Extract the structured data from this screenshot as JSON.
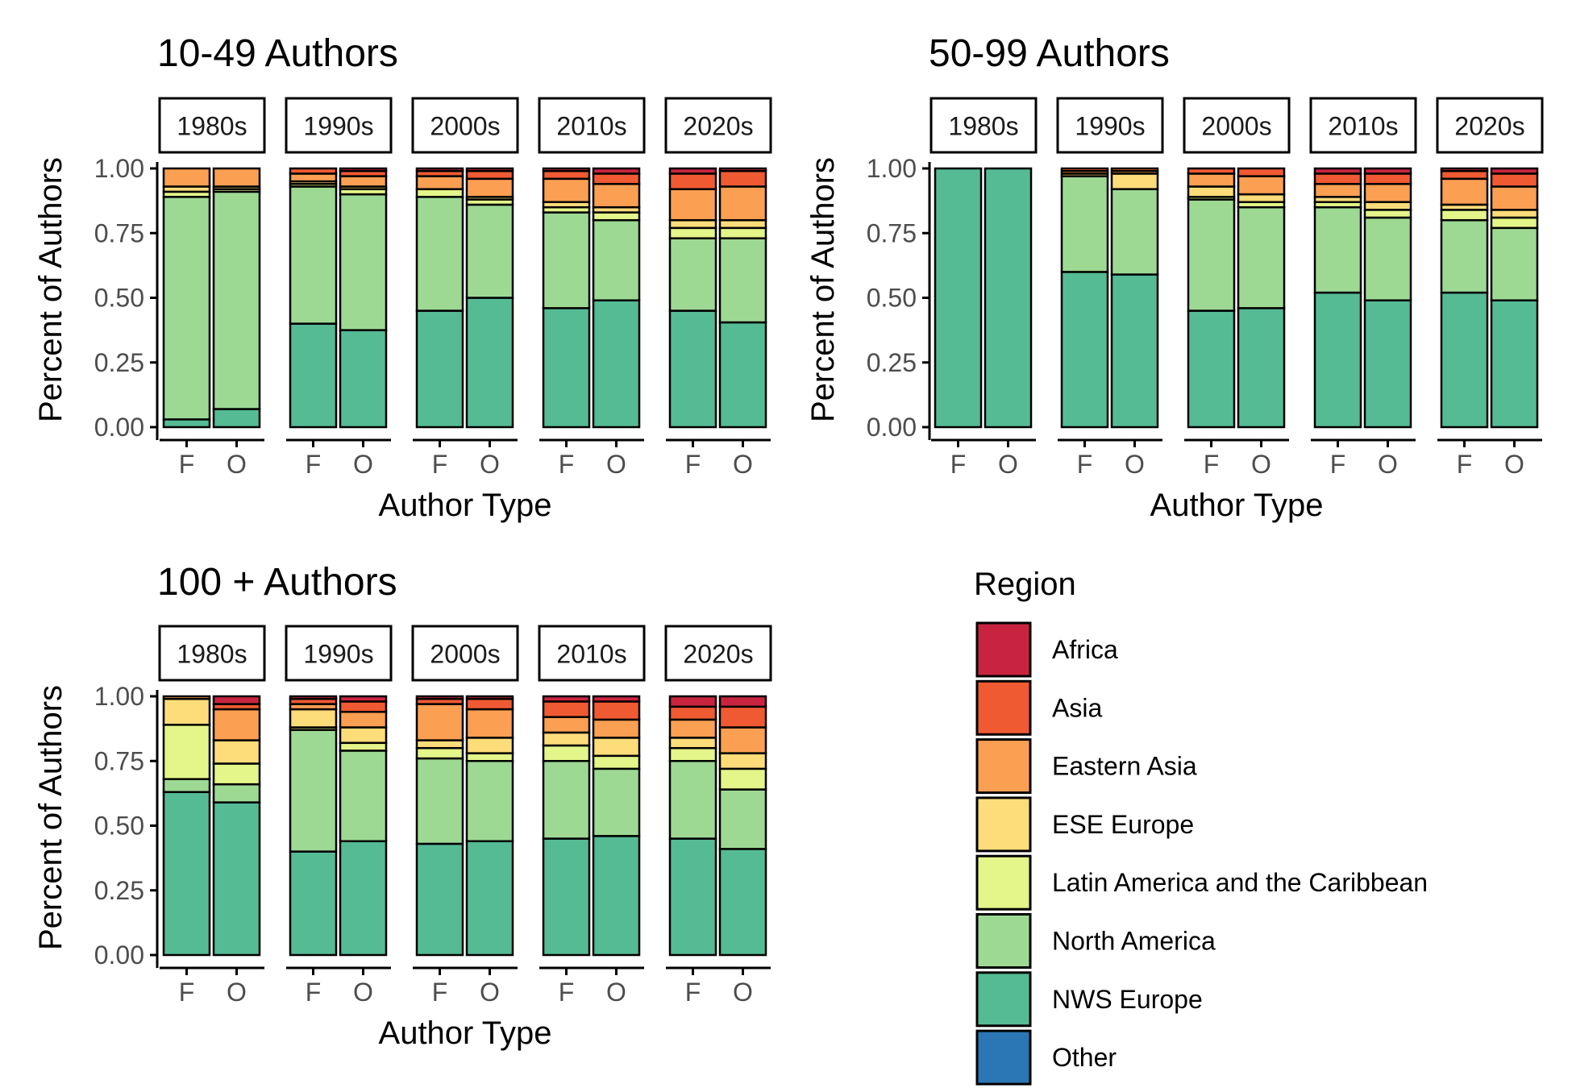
{
  "chart_data": {
    "type": "bar",
    "stacked": true,
    "y_ticks": [
      "0.00",
      "0.25",
      "0.50",
      "0.75",
      "1.00"
    ],
    "ylim": [
      0,
      1
    ],
    "ylabel": "Percent of Authors",
    "xlabel": "Author Type",
    "categories": [
      "F",
      "O"
    ],
    "decades": [
      "1980s",
      "1990s",
      "2000s",
      "2010s",
      "2020s"
    ],
    "legend": {
      "title": "Region",
      "position": "bottom-right",
      "items": [
        {
          "name": "Africa",
          "color": "#C9243F"
        },
        {
          "name": "Asia",
          "color": "#F05A32"
        },
        {
          "name": "Eastern Asia",
          "color": "#FB9F52"
        },
        {
          "name": "ESE Europe",
          "color": "#FDDC7A"
        },
        {
          "name": "Latin America and the Caribbean",
          "color": "#E4F589"
        },
        {
          "name": "North America",
          "color": "#9DD993"
        },
        {
          "name": "NWS Europe",
          "color": "#55BB94"
        },
        {
          "name": "Other",
          "color": "#2B76B4"
        }
      ]
    },
    "stack_order_bottom_to_top": [
      "NWS Europe",
      "North America",
      "Latin America and the Caribbean",
      "ESE Europe",
      "Eastern Asia",
      "Asia",
      "Africa",
      "Other"
    ],
    "panels": [
      {
        "title": "10-49 Authors",
        "facets": [
          {
            "decade": "1980s",
            "bars": [
              {
                "category": "F",
                "values": [
                  0.03,
                  0.86,
                  0.02,
                  0.02,
                  0.07,
                  0.0,
                  0.0,
                  0.0
                ]
              },
              {
                "category": "O",
                "values": [
                  0.07,
                  0.84,
                  0.01,
                  0.01,
                  0.07,
                  0.0,
                  0.0,
                  0.0
                ]
              }
            ]
          },
          {
            "decade": "1990s",
            "bars": [
              {
                "category": "F",
                "values": [
                  0.4,
                  0.53,
                  0.01,
                  0.01,
                  0.03,
                  0.02,
                  0.0,
                  0.0
                ]
              },
              {
                "category": "O",
                "values": [
                  0.375,
                  0.525,
                  0.02,
                  0.01,
                  0.04,
                  0.02,
                  0.01,
                  0.0
                ]
              }
            ]
          },
          {
            "decade": "2000s",
            "bars": [
              {
                "category": "F",
                "values": [
                  0.45,
                  0.44,
                  0.03,
                  0.0,
                  0.05,
                  0.02,
                  0.01,
                  0.0
                ]
              },
              {
                "category": "O",
                "values": [
                  0.5,
                  0.36,
                  0.02,
                  0.01,
                  0.07,
                  0.03,
                  0.01,
                  0.0
                ]
              }
            ]
          },
          {
            "decade": "2010s",
            "bars": [
              {
                "category": "F",
                "values": [
                  0.46,
                  0.37,
                  0.02,
                  0.02,
                  0.09,
                  0.03,
                  0.01,
                  0.0
                ]
              },
              {
                "category": "O",
                "values": [
                  0.49,
                  0.31,
                  0.03,
                  0.02,
                  0.09,
                  0.04,
                  0.02,
                  0.0
                ]
              }
            ]
          },
          {
            "decade": "2020s",
            "bars": [
              {
                "category": "F",
                "values": [
                  0.45,
                  0.28,
                  0.04,
                  0.03,
                  0.12,
                  0.06,
                  0.02,
                  0.0
                ]
              },
              {
                "category": "O",
                "values": [
                  0.405,
                  0.325,
                  0.04,
                  0.03,
                  0.13,
                  0.06,
                  0.01,
                  0.0
                ]
              }
            ]
          }
        ]
      },
      {
        "title": "50-99 Authors",
        "facets": [
          {
            "decade": "1980s",
            "bars": [
              {
                "category": "F",
                "values": [
                  1.0,
                  0.0,
                  0.0,
                  0.0,
                  0.0,
                  0.0,
                  0.0,
                  0.0
                ]
              },
              {
                "category": "O",
                "values": [
                  1.0,
                  0.0,
                  0.0,
                  0.0,
                  0.0,
                  0.0,
                  0.0,
                  0.0
                ]
              }
            ]
          },
          {
            "decade": "1990s",
            "bars": [
              {
                "category": "F",
                "values": [
                  0.6,
                  0.37,
                  0.0,
                  0.01,
                  0.01,
                  0.01,
                  0.0,
                  0.0
                ]
              },
              {
                "category": "O",
                "values": [
                  0.59,
                  0.33,
                  0.0,
                  0.06,
                  0.01,
                  0.01,
                  0.0,
                  0.0
                ]
              }
            ]
          },
          {
            "decade": "2000s",
            "bars": [
              {
                "category": "F",
                "values": [
                  0.45,
                  0.43,
                  0.01,
                  0.04,
                  0.05,
                  0.02,
                  0.0,
                  0.0
                ]
              },
              {
                "category": "O",
                "values": [
                  0.46,
                  0.39,
                  0.02,
                  0.03,
                  0.07,
                  0.03,
                  0.0,
                  0.0
                ]
              }
            ]
          },
          {
            "decade": "2010s",
            "bars": [
              {
                "category": "F",
                "values": [
                  0.52,
                  0.33,
                  0.02,
                  0.02,
                  0.05,
                  0.04,
                  0.02,
                  0.0
                ]
              },
              {
                "category": "O",
                "values": [
                  0.49,
                  0.32,
                  0.03,
                  0.03,
                  0.07,
                  0.04,
                  0.02,
                  0.0
                ]
              }
            ]
          },
          {
            "decade": "2020s",
            "bars": [
              {
                "category": "F",
                "values": [
                  0.52,
                  0.28,
                  0.04,
                  0.02,
                  0.1,
                  0.03,
                  0.01,
                  0.0
                ]
              },
              {
                "category": "O",
                "values": [
                  0.49,
                  0.28,
                  0.04,
                  0.03,
                  0.09,
                  0.05,
                  0.02,
                  0.0
                ]
              }
            ]
          }
        ]
      },
      {
        "title": "100 + Authors",
        "facets": [
          {
            "decade": "1980s",
            "bars": [
              {
                "category": "F",
                "values": [
                  0.63,
                  0.05,
                  0.21,
                  0.1,
                  0.01,
                  0.0,
                  0.0,
                  0.0
                ]
              },
              {
                "category": "O",
                "values": [
                  0.59,
                  0.07,
                  0.08,
                  0.09,
                  0.12,
                  0.02,
                  0.03,
                  0.0
                ]
              }
            ]
          },
          {
            "decade": "1990s",
            "bars": [
              {
                "category": "F",
                "values": [
                  0.4,
                  0.47,
                  0.01,
                  0.07,
                  0.02,
                  0.02,
                  0.01,
                  0.0
                ]
              },
              {
                "category": "O",
                "values": [
                  0.44,
                  0.35,
                  0.03,
                  0.06,
                  0.06,
                  0.04,
                  0.02,
                  0.0
                ]
              }
            ]
          },
          {
            "decade": "2000s",
            "bars": [
              {
                "category": "F",
                "values": [
                  0.43,
                  0.33,
                  0.04,
                  0.03,
                  0.14,
                  0.02,
                  0.01,
                  0.0
                ]
              },
              {
                "category": "O",
                "values": [
                  0.44,
                  0.31,
                  0.03,
                  0.06,
                  0.11,
                  0.04,
                  0.01,
                  0.0
                ]
              }
            ]
          },
          {
            "decade": "2010s",
            "bars": [
              {
                "category": "F",
                "values": [
                  0.45,
                  0.3,
                  0.06,
                  0.05,
                  0.06,
                  0.06,
                  0.02,
                  0.0
                ]
              },
              {
                "category": "O",
                "values": [
                  0.46,
                  0.26,
                  0.05,
                  0.07,
                  0.07,
                  0.07,
                  0.02,
                  0.0
                ]
              }
            ]
          },
          {
            "decade": "2020s",
            "bars": [
              {
                "category": "F",
                "values": [
                  0.45,
                  0.3,
                  0.05,
                  0.04,
                  0.07,
                  0.05,
                  0.04,
                  0.0
                ]
              },
              {
                "category": "O",
                "values": [
                  0.41,
                  0.23,
                  0.08,
                  0.06,
                  0.1,
                  0.08,
                  0.04,
                  0.0
                ]
              }
            ]
          }
        ]
      }
    ]
  }
}
